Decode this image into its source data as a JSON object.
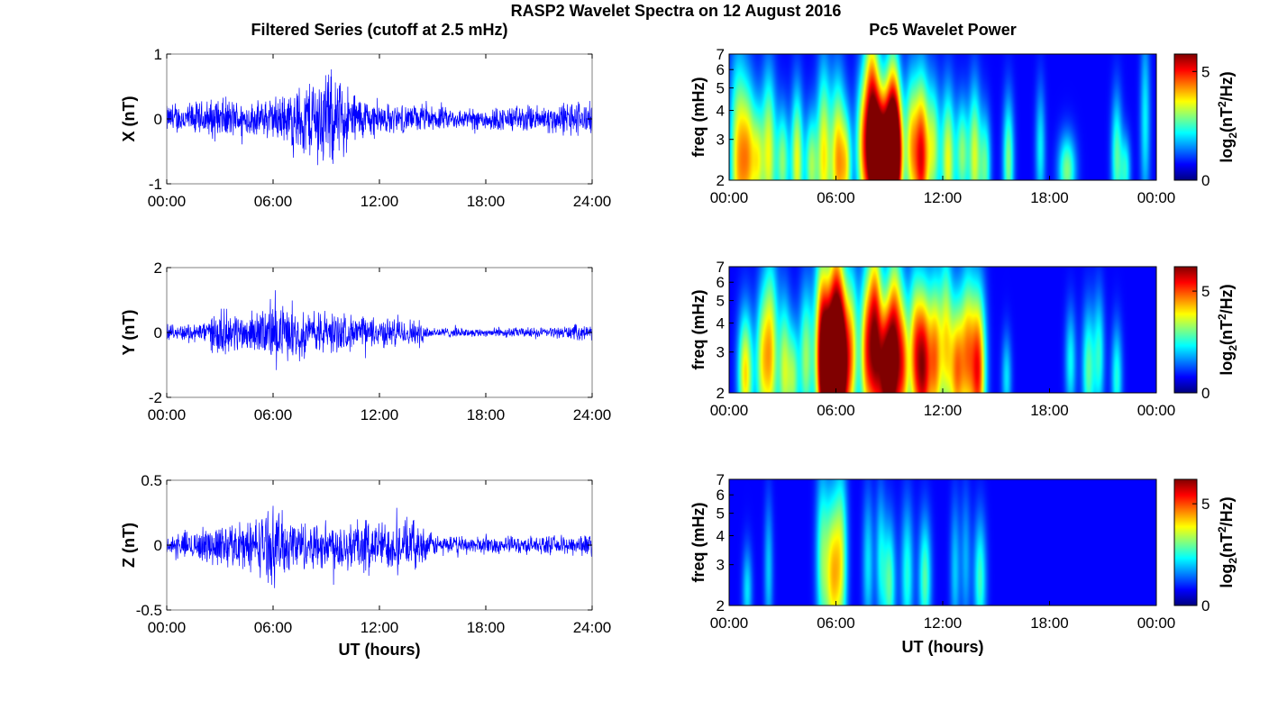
{
  "figure": {
    "suptitle": "RASP2 Wavelet Spectra on 12 August 2016",
    "left_title": "Filtered Series (cutoff at 2.5 mHz)",
    "right_title": "Pc5 Wavelet Power"
  },
  "colors": {
    "trace": "#0000ff",
    "colormap": "jet",
    "background": "#000080",
    "frame": "#000000"
  },
  "chart_data": [
    {
      "type": "line",
      "id": "X",
      "ylabel": "X (nT)",
      "ylim": [
        -1,
        1
      ],
      "yticks": [
        "-1",
        "0",
        "1"
      ],
      "xlabel": "",
      "xlim": [
        0,
        24
      ],
      "xticks": [
        "00:00",
        "06:00",
        "12:00",
        "18:00",
        "24:00"
      ],
      "series": [
        {
          "x": [
            0,
            1,
            2,
            3,
            4,
            5,
            6,
            7,
            8,
            9,
            10,
            11,
            12,
            13,
            14,
            15,
            16,
            17,
            18,
            19,
            20,
            21,
            22,
            23,
            24
          ],
          "envelope": [
            0.25,
            0.28,
            0.33,
            0.4,
            0.33,
            0.3,
            0.4,
            0.5,
            0.75,
            0.95,
            0.65,
            0.4,
            0.3,
            0.25,
            0.25,
            0.22,
            0.2,
            0.18,
            0.22,
            0.22,
            0.25,
            0.25,
            0.28,
            0.35,
            0.28
          ]
        }
      ]
    },
    {
      "type": "line",
      "id": "Y",
      "ylabel": "Y (nT)",
      "ylim": [
        -2,
        2
      ],
      "yticks": [
        "-2",
        "0",
        "2"
      ],
      "xlabel": "",
      "xlim": [
        0,
        24
      ],
      "xticks": [
        "00:00",
        "06:00",
        "12:00",
        "18:00",
        "24:00"
      ],
      "series": [
        {
          "x": [
            0,
            1,
            2,
            3,
            4,
            5,
            6,
            7,
            8,
            9,
            10,
            11,
            12,
            13,
            14,
            15,
            16,
            17,
            18,
            19,
            20,
            21,
            22,
            23,
            24
          ],
          "envelope": [
            0.25,
            0.3,
            0.4,
            0.85,
            0.7,
            0.75,
            1.05,
            0.9,
            0.75,
            0.85,
            0.65,
            0.6,
            0.55,
            0.5,
            0.5,
            0.2,
            0.18,
            0.15,
            0.15,
            0.18,
            0.18,
            0.18,
            0.2,
            0.28,
            0.25
          ]
        }
      ]
    },
    {
      "type": "line",
      "id": "Z",
      "ylabel": "Z (nT)",
      "ylim": [
        -0.5,
        0.5
      ],
      "yticks": [
        "-0.5",
        "0",
        "0.5"
      ],
      "xlabel": "UT (hours)",
      "xlim": [
        0,
        24
      ],
      "xticks": [
        "00:00",
        "06:00",
        "12:00",
        "18:00",
        "24:00"
      ],
      "series": [
        {
          "x": [
            0,
            1,
            2,
            3,
            4,
            5,
            6,
            7,
            8,
            9,
            10,
            11,
            12,
            13,
            14,
            15,
            16,
            17,
            18,
            19,
            20,
            21,
            22,
            23,
            24
          ],
          "envelope": [
            0.08,
            0.12,
            0.15,
            0.2,
            0.2,
            0.25,
            0.35,
            0.25,
            0.22,
            0.22,
            0.25,
            0.25,
            0.22,
            0.22,
            0.22,
            0.1,
            0.08,
            0.08,
            0.08,
            0.08,
            0.08,
            0.08,
            0.08,
            0.1,
            0.1
          ]
        }
      ]
    },
    {
      "type": "heatmap",
      "id": "Xpow",
      "ylabel": "freq (mHz)",
      "yscale": "log",
      "ylim": [
        2,
        7
      ],
      "yticks": [
        "2",
        "3",
        "4",
        "5",
        "6",
        "7"
      ],
      "xlim": [
        0,
        24
      ],
      "xticks": [
        "00:00",
        "06:00",
        "12:00",
        "18:00",
        "00:00"
      ],
      "xlabel": "",
      "colorbar": {
        "label_parts": [
          "log",
          "2",
          "(nT",
          "2",
          "/Hz)"
        ],
        "ticks": [
          "0",
          "5"
        ],
        "max": 5.8
      },
      "blobs": [
        [
          0.5,
          2.4,
          3.5,
          0.35,
          0.55
        ],
        [
          1.1,
          2.5,
          3.0,
          0.3,
          0.4
        ],
        [
          1.6,
          2.4,
          2.2,
          0.22,
          0.3
        ],
        [
          2.2,
          2.6,
          3.2,
          0.3,
          0.45
        ],
        [
          3.0,
          2.4,
          2.5,
          0.25,
          0.3
        ],
        [
          3.8,
          2.4,
          3.2,
          0.25,
          0.4
        ],
        [
          4.6,
          2.3,
          2.6,
          0.25,
          0.3
        ],
        [
          5.3,
          2.5,
          3.3,
          0.28,
          0.5
        ],
        [
          6.1,
          2.4,
          3.8,
          0.3,
          0.45
        ],
        [
          6.6,
          2.3,
          2.4,
          0.22,
          0.3
        ],
        [
          7.5,
          2.8,
          3.0,
          0.3,
          0.4
        ],
        [
          8.0,
          3.2,
          4.9,
          0.3,
          0.6
        ],
        [
          8.4,
          2.4,
          5.2,
          0.3,
          0.4
        ],
        [
          8.9,
          2.2,
          5.8,
          0.32,
          0.4
        ],
        [
          9.2,
          3.0,
          4.4,
          0.28,
          0.5
        ],
        [
          9.5,
          2.6,
          3.5,
          0.25,
          0.35
        ],
        [
          10.2,
          2.8,
          2.8,
          0.25,
          0.4
        ],
        [
          10.8,
          2.5,
          5.0,
          0.32,
          0.45
        ],
        [
          11.5,
          2.8,
          2.5,
          0.25,
          0.35
        ],
        [
          12.3,
          2.4,
          3.2,
          0.28,
          0.4
        ],
        [
          13.1,
          2.6,
          2.5,
          0.25,
          0.3
        ],
        [
          13.8,
          2.5,
          3.0,
          0.25,
          0.4
        ],
        [
          14.4,
          2.3,
          2.2,
          0.22,
          0.3
        ],
        [
          15.7,
          2.4,
          2.5,
          0.22,
          0.35
        ],
        [
          17.5,
          2.7,
          1.6,
          0.2,
          0.35
        ],
        [
          19.0,
          2.2,
          2.5,
          0.35,
          0.2
        ],
        [
          21.8,
          2.5,
          2.2,
          0.22,
          0.35
        ],
        [
          22.3,
          2.2,
          1.8,
          0.2,
          0.2
        ],
        [
          23.4,
          3.6,
          1.6,
          0.2,
          0.5
        ]
      ]
    },
    {
      "type": "heatmap",
      "id": "Ypow",
      "ylabel": "freq (mHz)",
      "yscale": "log",
      "ylim": [
        2,
        7
      ],
      "yticks": [
        "2",
        "3",
        "4",
        "5",
        "6",
        "7"
      ],
      "xlim": [
        0,
        24
      ],
      "xticks": [
        "00:00",
        "06:00",
        "12:00",
        "18:00",
        "00:00"
      ],
      "xlabel": "",
      "colorbar": {
        "label_parts": [
          "log",
          "2",
          "(nT",
          "2",
          "/Hz)"
        ],
        "ticks": [
          "0",
          "5"
        ],
        "max": 6.2
      },
      "blobs": [
        [
          0.9,
          2.4,
          3.8,
          0.3,
          0.35
        ],
        [
          1.8,
          2.7,
          2.5,
          0.25,
          0.4
        ],
        [
          2.3,
          3.0,
          3.8,
          0.3,
          0.5
        ],
        [
          3.1,
          2.5,
          3.0,
          0.25,
          0.4
        ],
        [
          3.6,
          2.3,
          2.4,
          0.22,
          0.3
        ],
        [
          4.3,
          2.8,
          2.8,
          0.28,
          0.4
        ],
        [
          5.2,
          3.2,
          4.6,
          0.3,
          0.55
        ],
        [
          5.6,
          2.4,
          5.8,
          0.35,
          0.4
        ],
        [
          6.0,
          3.5,
          5.2,
          0.3,
          0.6
        ],
        [
          6.4,
          2.6,
          5.0,
          0.28,
          0.45
        ],
        [
          6.9,
          3.0,
          3.2,
          0.25,
          0.45
        ],
        [
          7.7,
          3.0,
          4.0,
          0.28,
          0.45
        ],
        [
          8.2,
          3.5,
          5.0,
          0.28,
          0.55
        ],
        [
          8.8,
          2.4,
          5.6,
          0.32,
          0.4
        ],
        [
          9.3,
          3.0,
          5.0,
          0.3,
          0.55
        ],
        [
          9.8,
          2.6,
          3.5,
          0.25,
          0.4
        ],
        [
          10.4,
          3.0,
          3.0,
          0.25,
          0.45
        ],
        [
          10.9,
          2.6,
          5.6,
          0.32,
          0.45
        ],
        [
          11.6,
          2.8,
          4.0,
          0.28,
          0.45
        ],
        [
          12.2,
          3.4,
          3.0,
          0.25,
          0.5
        ],
        [
          12.8,
          2.5,
          4.2,
          0.3,
          0.4
        ],
        [
          13.4,
          3.0,
          3.5,
          0.28,
          0.45
        ],
        [
          14.0,
          2.5,
          5.0,
          0.3,
          0.45
        ],
        [
          15.6,
          2.3,
          1.6,
          0.2,
          0.25
        ],
        [
          19.2,
          2.7,
          1.8,
          0.22,
          0.3
        ],
        [
          20.2,
          2.5,
          2.4,
          0.25,
          0.35
        ],
        [
          20.8,
          2.9,
          2.0,
          0.22,
          0.35
        ],
        [
          21.8,
          2.3,
          2.0,
          0.22,
          0.3
        ]
      ]
    },
    {
      "type": "heatmap",
      "id": "Zpow",
      "ylabel": "freq (mHz)",
      "yscale": "log",
      "ylim": [
        2,
        7
      ],
      "yticks": [
        "2",
        "3",
        "4",
        "5",
        "6",
        "7"
      ],
      "xlim": [
        0,
        24
      ],
      "xticks": [
        "00:00",
        "06:00",
        "12:00",
        "18:00",
        "00:00"
      ],
      "xlabel": "UT (hours)",
      "colorbar": {
        "label_parts": [
          "log",
          "2",
          "(nT",
          "2",
          "/Hz)"
        ],
        "ticks": [
          "0",
          "5"
        ],
        "max": 6.2
      },
      "blobs": [
        [
          1.0,
          2.3,
          1.6,
          0.2,
          0.25
        ],
        [
          2.2,
          2.8,
          1.4,
          0.18,
          0.4
        ],
        [
          5.2,
          3.2,
          2.2,
          0.25,
          0.5
        ],
        [
          5.8,
          2.7,
          3.6,
          0.3,
          0.45
        ],
        [
          6.3,
          3.2,
          2.6,
          0.25,
          0.5
        ],
        [
          7.8,
          3.0,
          1.6,
          0.22,
          0.4
        ],
        [
          8.5,
          3.2,
          1.6,
          0.2,
          0.4
        ],
        [
          9.0,
          2.5,
          2.4,
          0.25,
          0.35
        ],
        [
          10.0,
          2.7,
          2.0,
          0.25,
          0.4
        ],
        [
          11.0,
          2.6,
          2.4,
          0.25,
          0.35
        ],
        [
          12.7,
          2.8,
          1.4,
          0.2,
          0.4
        ],
        [
          13.3,
          3.1,
          1.2,
          0.2,
          0.4
        ],
        [
          14.1,
          2.6,
          2.2,
          0.25,
          0.35
        ]
      ]
    }
  ]
}
